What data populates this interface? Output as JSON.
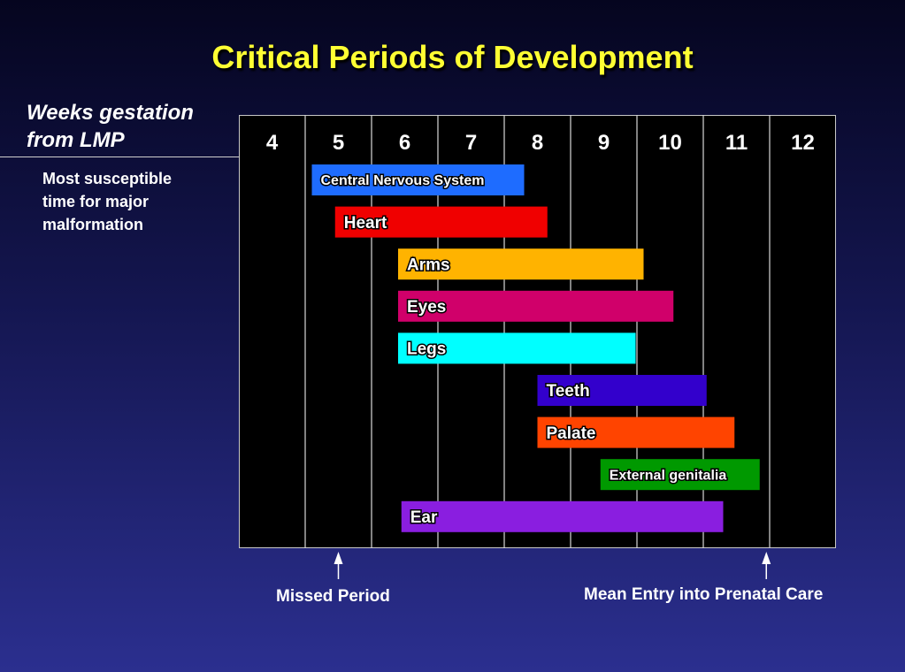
{
  "title": "Critical Periods of Development",
  "weeks_label_line1": "Weeks gestation",
  "weeks_label_line2": "from LMP",
  "susceptible_label_lines": [
    "Most susceptible",
    "time for major",
    "malformation"
  ],
  "annotations": {
    "missed_period": "Missed Period",
    "mean_entry": "Mean Entry into Prenatal Care"
  },
  "chart_data": {
    "type": "bar",
    "orientation": "horizontal-range",
    "title": "Critical Periods of Development",
    "xlabel": "Weeks gestation from LMP",
    "x_ticks": [
      "4",
      "5",
      "6",
      "7",
      "8",
      "9",
      "10",
      "11",
      "12"
    ],
    "xlim": [
      3.5,
      12.5
    ],
    "gridlines": [
      4.5,
      5.5,
      6.5,
      7.5,
      8.5,
      9.5,
      10.5,
      11.5
    ],
    "series": [
      {
        "label": "Central Nervous System",
        "start": 4.6,
        "end": 7.8,
        "color": "#1e6cff"
      },
      {
        "label": "Heart",
        "start": 4.95,
        "end": 8.15,
        "color": "#f00000"
      },
      {
        "label": "Arms",
        "start": 5.9,
        "end": 9.6,
        "color": "#ffb300"
      },
      {
        "label": "Eyes",
        "start": 5.9,
        "end": 10.05,
        "color": "#d0006a"
      },
      {
        "label": "Legs",
        "start": 5.9,
        "end": 9.48,
        "color": "#00ffff"
      },
      {
        "label": "Teeth",
        "start": 8.0,
        "end": 10.55,
        "color": "#3300cc"
      },
      {
        "label": "Palate",
        "start": 8.0,
        "end": 10.97,
        "color": "#ff4400"
      },
      {
        "label": "External genitalia",
        "start": 8.95,
        "end": 11.35,
        "color": "#009900"
      },
      {
        "label": "Ear",
        "start": 5.95,
        "end": 10.8,
        "color": "#8a1ee0"
      }
    ],
    "markers": [
      {
        "label": "Missed Period",
        "week": 5.0
      },
      {
        "label": "Mean Entry into Prenatal Care",
        "week": 11.45
      }
    ]
  }
}
